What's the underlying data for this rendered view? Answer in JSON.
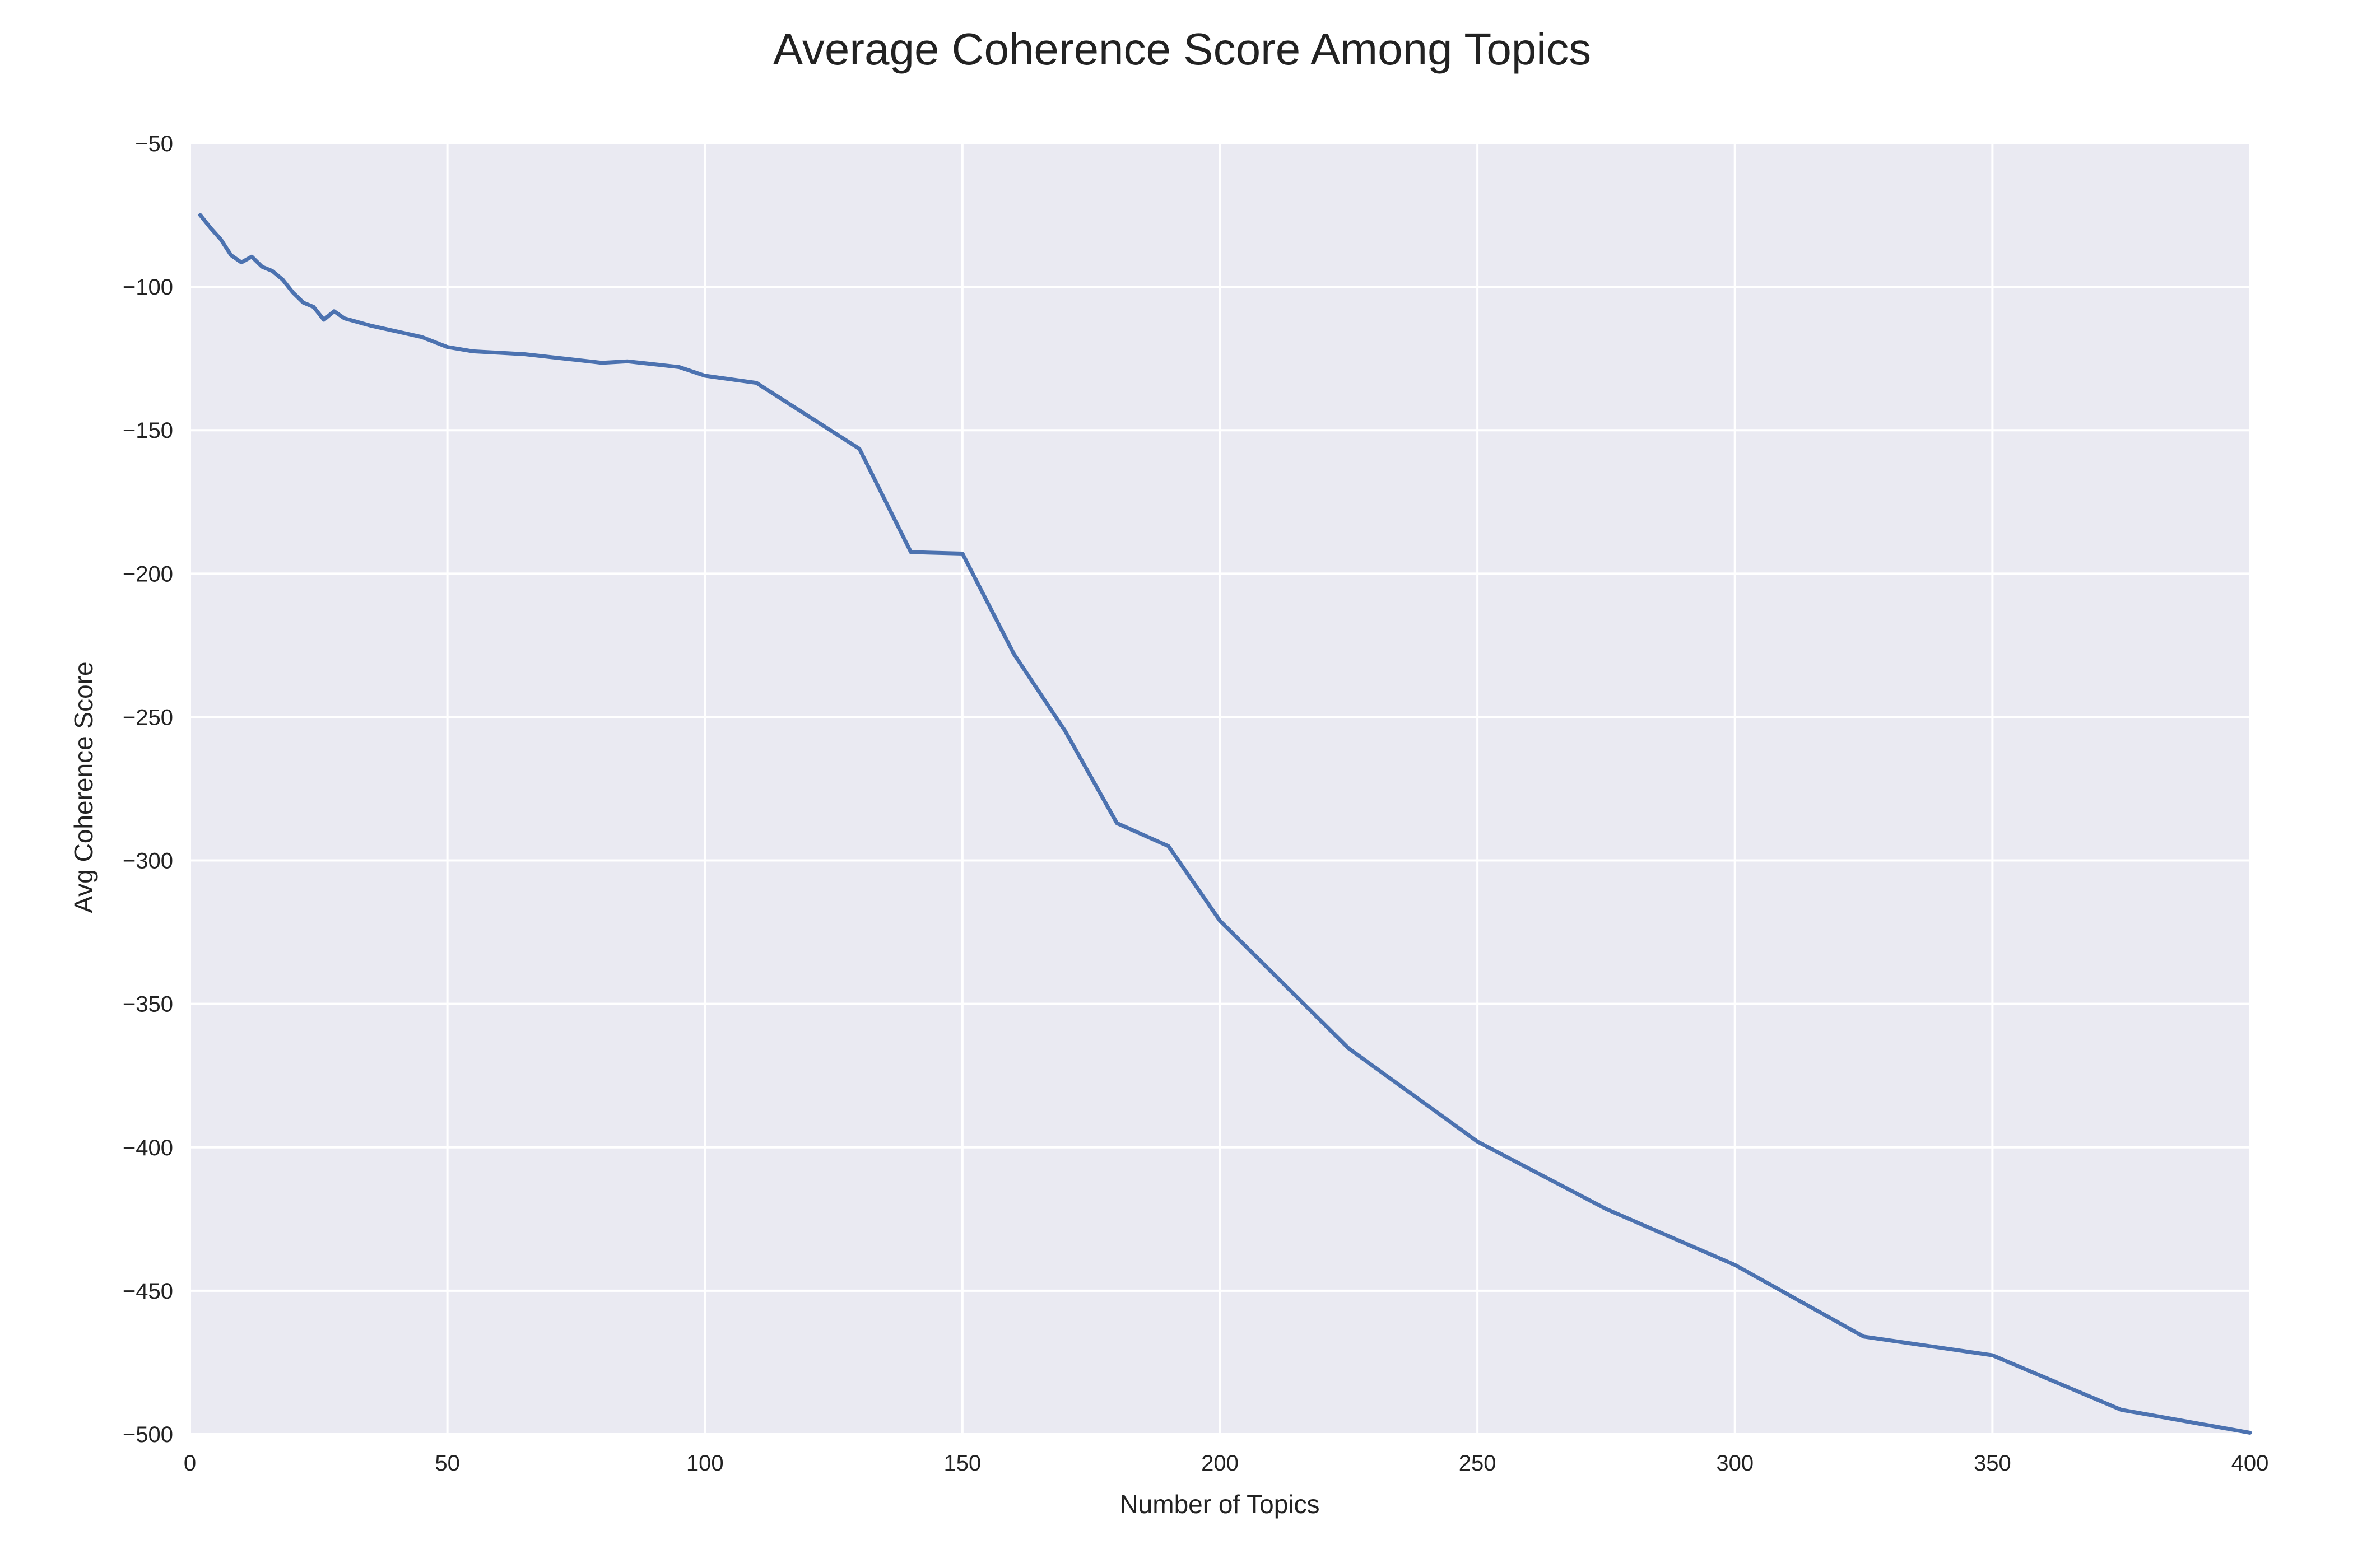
{
  "chart_data": {
    "type": "line",
    "title": "Average Coherence Score Among Topics",
    "xlabel": "Number of Topics",
    "ylabel": "Avg Coherence Score",
    "xlim": [
      0,
      400
    ],
    "ylim": [
      -500,
      -50
    ],
    "xticks": [
      0,
      50,
      100,
      150,
      200,
      250,
      300,
      350,
      400
    ],
    "yticks": [
      -50,
      -100,
      -150,
      -200,
      -250,
      -300,
      -350,
      -400,
      -450,
      -500
    ],
    "xtick_labels": [
      "0",
      "50",
      "100",
      "150",
      "200",
      "250",
      "300",
      "350",
      "400"
    ],
    "ytick_labels": [
      "−50",
      "−100",
      "−150",
      "−200",
      "−250",
      "−300",
      "−350",
      "−400",
      "−450",
      "−500"
    ],
    "grid": true,
    "colors": {
      "background": "#EAEAF2",
      "grid": "#FFFFFF",
      "line": "#4C72B0"
    },
    "series": [
      {
        "x": [
          2,
          4,
          6,
          8,
          10,
          12,
          14,
          16,
          18,
          20,
          22,
          24,
          26,
          28,
          30,
          35,
          40,
          45,
          50,
          55,
          60,
          65,
          70,
          75,
          80,
          85,
          90,
          95,
          100,
          110,
          120,
          130,
          140,
          150,
          160,
          170,
          180,
          190,
          200,
          225,
          250,
          275,
          300,
          325,
          350,
          375,
          400
        ],
        "y": [
          -75,
          -79.5,
          -83.5,
          -89,
          -91.5,
          -89.5,
          -93,
          -94.5,
          -97.5,
          -102,
          -105.5,
          -107,
          -111.5,
          -108.5,
          -111,
          -113.5,
          -115.5,
          -117.5,
          -121,
          -122.5,
          -123,
          -123.5,
          -124.5,
          -125.5,
          -126.5,
          -126,
          -127,
          -128,
          -131,
          -133.5,
          -145,
          -156.5,
          -192.5,
          -193,
          -228,
          -255,
          -287,
          -295,
          -321,
          -365.5,
          -398,
          -421.5,
          -441,
          -466,
          -472.5,
          -491.5,
          -499.5
        ]
      }
    ]
  }
}
